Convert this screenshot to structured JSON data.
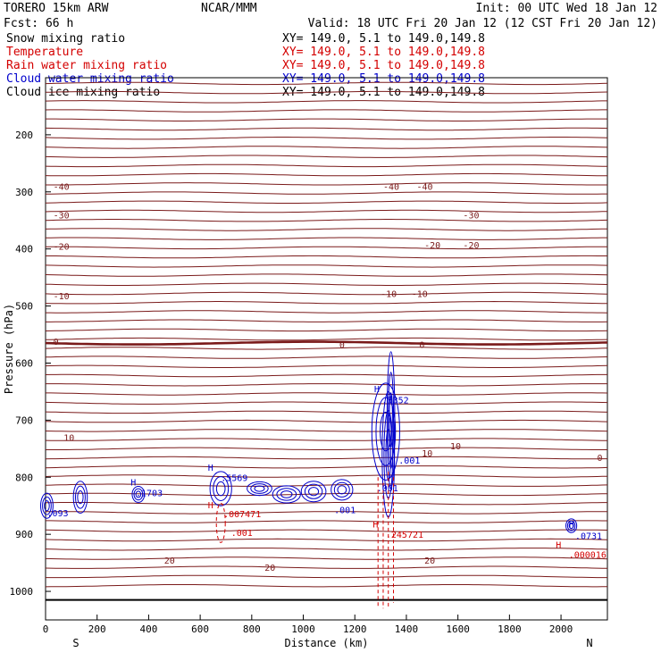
{
  "header": {
    "model": "TORERO  15km ARW",
    "center": "NCAR/MMM",
    "init": "Init: 00 UTC Wed 18 Jan 12",
    "fcst": "Fcst:   66 h",
    "valid": "Valid: 18 UTC Fri 20 Jan 12 (12 CST Fri 20 Jan 12)"
  },
  "fields": [
    {
      "name": "Snow mixing ratio",
      "xy": "XY= 149.0,  5.1 to 149.0,149.8",
      "color": "#000000"
    },
    {
      "name": "Temperature",
      "xy": "XY= 149.0,  5.1 to 149.0,149.8",
      "color": "#d40000"
    },
    {
      "name": "Rain water mixing ratio",
      "xy": "XY= 149.0,  5.1 to 149.0,149.8",
      "color": "#d40000"
    },
    {
      "name": "Cloud water mixing ratio",
      "xy": "XY= 149.0,  5.1 to 149.0,149.8",
      "color": "#0000cc"
    },
    {
      "name": "Cloud ice mixing ratio",
      "xy": "XY= 149.0,  5.1 to 149.0,149.8",
      "color": "#000000"
    }
  ],
  "colors": {
    "temperature": "#7a1a1a",
    "rain": "#d40000",
    "cloud_water": "#0000cc",
    "axis": "#000000"
  },
  "chart_data": {
    "type": "contour",
    "xlabel": "Distance (km)",
    "ylabel": "Pressure (hPa)",
    "xlim": [
      0,
      2180
    ],
    "ylim": [
      1050,
      100
    ],
    "xticks": [
      0,
      200,
      400,
      600,
      800,
      1000,
      1200,
      1400,
      1600,
      1800,
      2000
    ],
    "yticks": [
      200,
      300,
      400,
      500,
      600,
      700,
      800,
      900,
      1000
    ],
    "x_end_labels": [
      "S",
      "N"
    ],
    "temperature_isotherms": [
      {
        "label": "-40",
        "p": 290
      },
      {
        "label": "-30",
        "p": 340
      },
      {
        "label": "-20",
        "p": 385
      },
      {
        "label": "-10",
        "p": 455
      },
      {
        "label": "0",
        "p": 565
      },
      {
        "label": "10",
        "p": 745
      },
      {
        "label": "20",
        "p": 955
      }
    ],
    "temperature_contour_labels": [
      {
        "text": "-40",
        "x": 30,
        "p": 290
      },
      {
        "text": "-40",
        "x": 1310,
        "p": 290
      },
      {
        "text": "-40",
        "x": 1440,
        "p": 290
      },
      {
        "text": "-30",
        "x": 30,
        "p": 340
      },
      {
        "text": "-30",
        "x": 1620,
        "p": 340
      },
      {
        "text": "-20",
        "x": 30,
        "p": 395
      },
      {
        "text": "-20",
        "x": 1470,
        "p": 393
      },
      {
        "text": "-20",
        "x": 1620,
        "p": 393
      },
      {
        "text": "-10",
        "x": 30,
        "p": 482
      },
      {
        "text": "-10",
        "x": 1300,
        "p": 478
      },
      {
        "text": "-10",
        "x": 1420,
        "p": 478
      },
      {
        "text": "0",
        "x": 30,
        "p": 562
      },
      {
        "text": "0",
        "x": 1140,
        "p": 567
      },
      {
        "text": "0",
        "x": 1450,
        "p": 567
      },
      {
        "text": "10",
        "x": 70,
        "p": 730
      },
      {
        "text": "10",
        "x": 1460,
        "p": 757
      },
      {
        "text": "10",
        "x": 1570,
        "p": 745
      },
      {
        "text": "0",
        "x": 2140,
        "p": 765
      },
      {
        "text": "20",
        "x": 460,
        "p": 945
      },
      {
        "text": "20",
        "x": 850,
        "p": 958
      },
      {
        "text": "20",
        "x": 1470,
        "p": 945
      }
    ],
    "cloud_water_labels": [
      {
        "text": "H",
        "x": 330,
        "p": 808
      },
      {
        "text": ".1703",
        "x": 350,
        "p": 827
      },
      {
        "text": "H",
        "x": 630,
        "p": 782
      },
      {
        "text": ".5569",
        "x": 680,
        "p": 800
      },
      {
        "text": ".001",
        "x": 1120,
        "p": 857
      },
      {
        "text": "H",
        "x": 1275,
        "p": 645
      },
      {
        "text": ".7352",
        "x": 1305,
        "p": 664
      },
      {
        "text": ".001",
        "x": 1285,
        "p": 818
      },
      {
        "text": ".001",
        "x": 1370,
        "p": 770
      },
      {
        "text": ".093",
        "x": 5,
        "p": 862
      },
      {
        "text": "H",
        "x": 2030,
        "p": 882
      },
      {
        "text": ".0731",
        "x": 2055,
        "p": 902
      }
    ],
    "rain_water_labels": [
      {
        "text": "H",
        "x": 630,
        "p": 848
      },
      {
        "text": ".007471",
        "x": 690,
        "p": 864
      },
      {
        "text": ".001",
        "x": 720,
        "p": 897
      },
      {
        "text": "H",
        "x": 1270,
        "p": 882
      },
      {
        "text": ".245721",
        "x": 1320,
        "p": 900
      },
      {
        "text": "H",
        "x": 1980,
        "p": 918
      },
      {
        "text": ".000016",
        "x": 2030,
        "p": 935
      }
    ]
  }
}
